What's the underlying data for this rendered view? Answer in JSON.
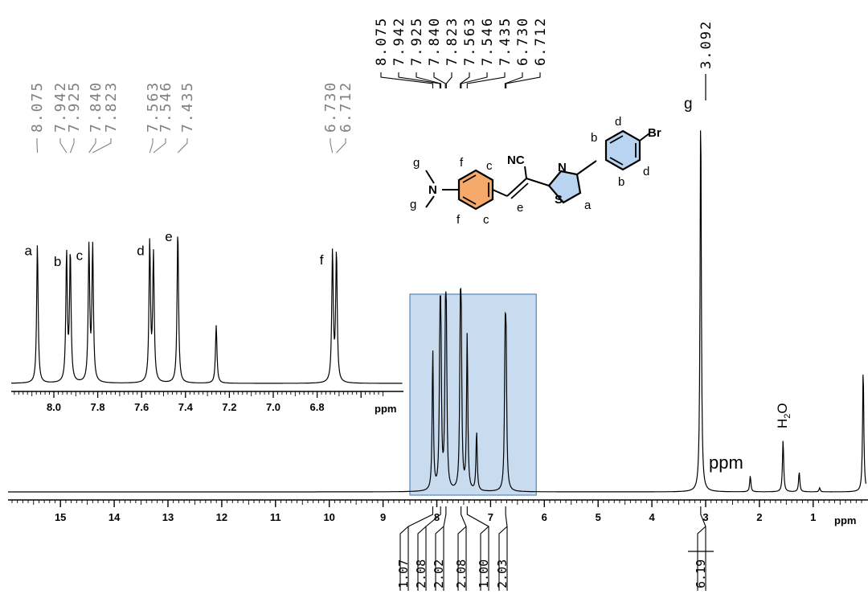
{
  "chart_data": [
    {
      "id": "main",
      "type": "line",
      "title": "",
      "xlabel": "ppm",
      "ylabel": "",
      "x_reversed": true,
      "xlim": [
        16.0,
        0.0
      ],
      "ylim": [
        0,
        1
      ],
      "x_ticks": [
        15,
        14,
        13,
        12,
        11,
        10,
        9,
        8,
        7,
        6,
        5,
        4,
        3,
        2,
        1
      ],
      "x_tick_labels": [
        "15",
        "14",
        "13",
        "12",
        "11",
        "10",
        "9",
        "8",
        "7",
        "6",
        "5",
        "4",
        "3",
        "2",
        "1"
      ],
      "series": [
        {
          "peaks": [
            {
              "x": 8.075,
              "y": 0.35
            },
            {
              "x": 7.942,
              "y": 0.33
            },
            {
              "x": 7.925,
              "y": 0.33
            },
            {
              "x": 7.84,
              "y": 0.34
            },
            {
              "x": 7.823,
              "y": 0.34
            },
            {
              "x": 7.563,
              "y": 0.36
            },
            {
              "x": 7.546,
              "y": 0.34
            },
            {
              "x": 7.435,
              "y": 0.39
            },
            {
              "x": 7.26,
              "y": 0.15
            },
            {
              "x": 6.73,
              "y": 0.32
            },
            {
              "x": 6.712,
              "y": 0.32
            },
            {
              "x": 3.092,
              "y": 0.97
            },
            {
              "x": 2.17,
              "y": 0.04
            },
            {
              "x": 1.56,
              "y": 0.13
            },
            {
              "x": 1.26,
              "y": 0.05
            },
            {
              "x": 0.88,
              "y": 0.01
            },
            {
              "x": 0.07,
              "y": 0.31
            }
          ]
        }
      ],
      "peak_labels": [
        "8.075",
        "7.942",
        "7.925",
        "7.840",
        "7.823",
        "7.563",
        "7.546",
        "7.435",
        "6.730",
        "6.712",
        "3.092"
      ],
      "peak_label_g": "g",
      "integrals": [
        {
          "x": 8.075,
          "value": "1.07"
        },
        {
          "x": 7.93,
          "value": "2.08"
        },
        {
          "x": 7.83,
          "value": "2.02"
        },
        {
          "x": 7.55,
          "value": "2.08"
        },
        {
          "x": 7.435,
          "value": "1.00"
        },
        {
          "x": 6.72,
          "value": "2.03"
        },
        {
          "x": 3.092,
          "value": "6.19"
        }
      ],
      "annotations": [
        {
          "text": "H2O",
          "x": 1.56
        },
        {
          "text": "ppm",
          "x": 2.45
        }
      ],
      "highlight_region": [
        8.5,
        6.15
      ],
      "grid": false
    },
    {
      "id": "inset",
      "type": "line",
      "title": "",
      "xlabel": "ppm",
      "x_reversed": true,
      "xlim": [
        8.2,
        6.5
      ],
      "x_ticks": [
        8.0,
        7.8,
        7.6,
        7.4,
        7.2,
        7.0,
        6.8
      ],
      "x_tick_labels": [
        "8.0",
        "7.8",
        "7.6",
        "7.4",
        "7.2",
        "7.0",
        "6.8"
      ],
      "series": [
        {
          "peaks": [
            {
              "x": 8.075,
              "y": 0.89,
              "label": "a"
            },
            {
              "x": 7.942,
              "y": 0.82,
              "label": "b"
            },
            {
              "x": 7.925,
              "y": 0.82
            },
            {
              "x": 7.84,
              "y": 0.86,
              "label": "c"
            },
            {
              "x": 7.823,
              "y": 0.86
            },
            {
              "x": 7.563,
              "y": 0.89,
              "label": "d"
            },
            {
              "x": 7.546,
              "y": 0.81
            },
            {
              "x": 7.435,
              "y": 0.98,
              "label": "e"
            },
            {
              "x": 7.26,
              "y": 0.37
            },
            {
              "x": 6.73,
              "y": 0.83,
              "label": "f"
            },
            {
              "x": 6.712,
              "y": 0.83
            }
          ]
        }
      ],
      "peak_labels": [
        "8.075",
        "7.942",
        "7.925",
        "7.840",
        "7.823",
        "7.563",
        "7.546",
        "7.435",
        "6.730",
        "6.712"
      ]
    }
  ],
  "structure": {
    "labels": {
      "g1": "g",
      "g2": "g",
      "N": "N",
      "f1": "f",
      "f2": "f",
      "c1": "c",
      "c2": "c",
      "e": "e",
      "CN": "NC",
      "thN": "N",
      "thS": "S",
      "a": "a",
      "b1": "b",
      "b2": "b",
      "d1": "d",
      "d2": "d",
      "Br": "Br"
    },
    "colors": {
      "left_ring": "#f5a96b",
      "right_rings": "#b8d4f0"
    }
  },
  "colors": {
    "spectrum": "#000000",
    "peak_label_text": "#808080",
    "highlight_fill": "#c9dcef",
    "highlight_stroke": "#6e9bc8"
  }
}
